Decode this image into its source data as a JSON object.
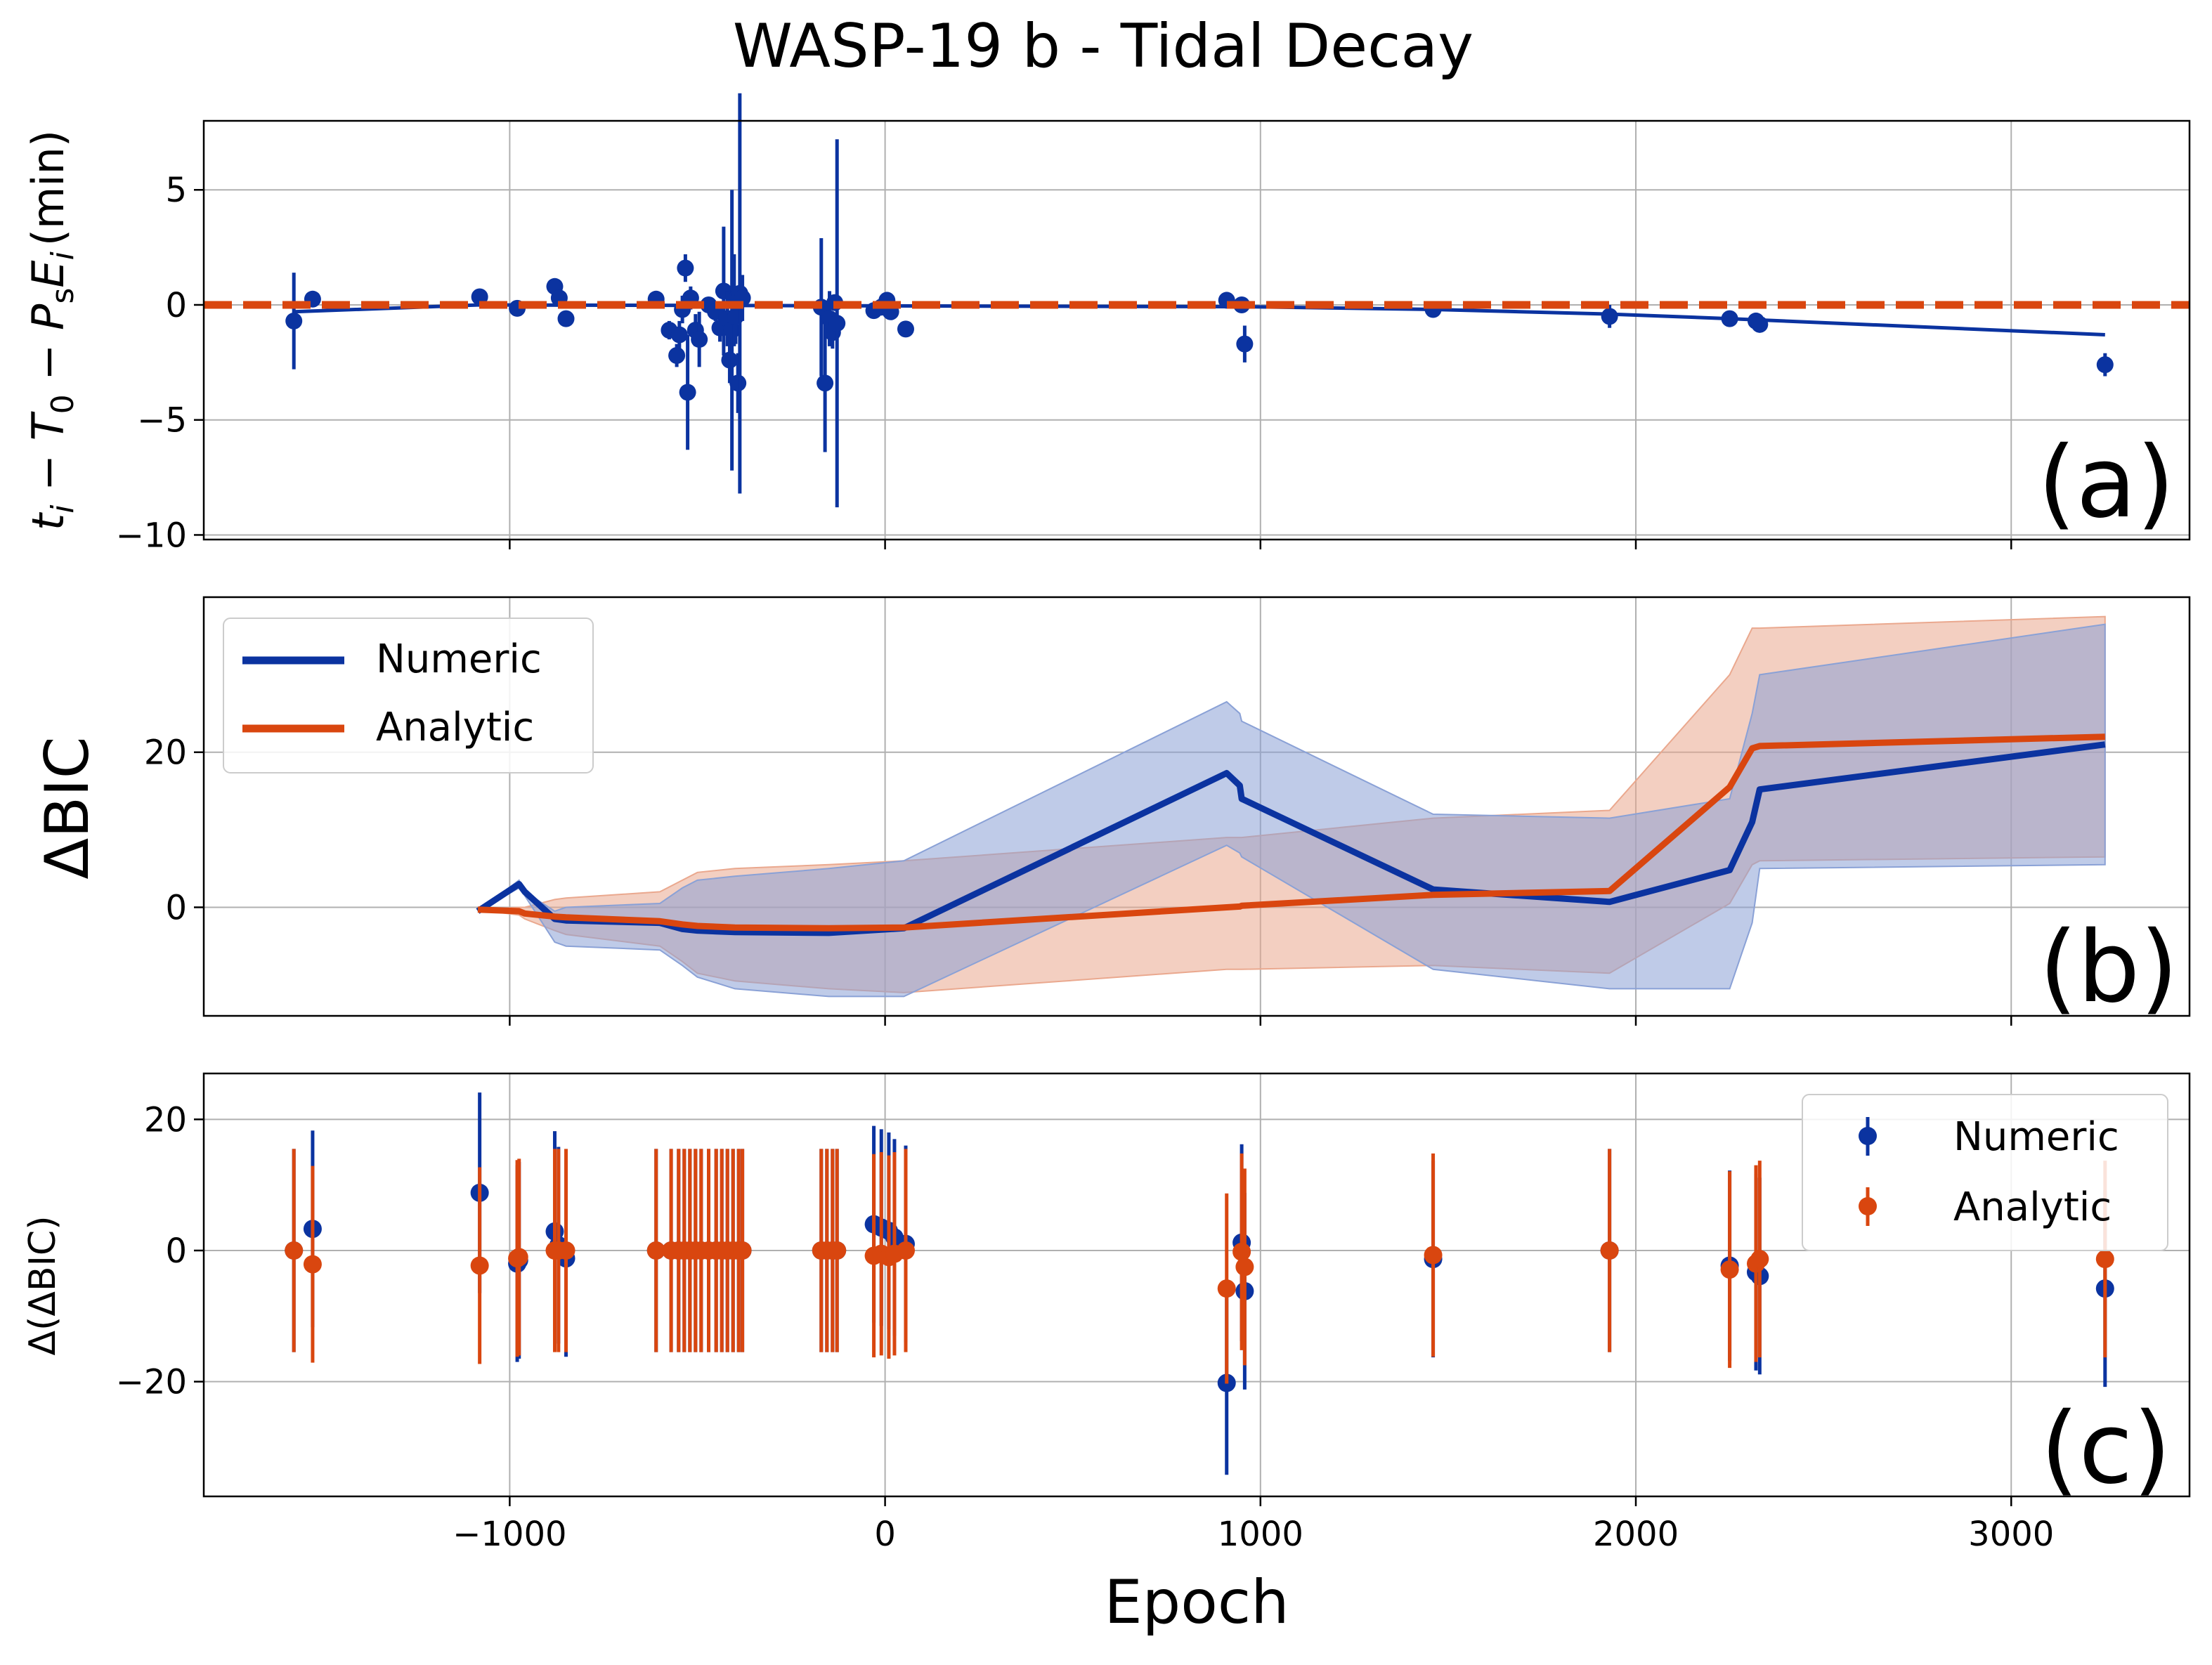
{
  "title": "WASP-19 b - Tidal Decay",
  "xlabel": "Epoch",
  "xlim": [
    -1815,
    3475
  ],
  "xticks": [
    -1000,
    0,
    1000,
    2000,
    3000
  ],
  "xtick_labels": [
    "−1000",
    "0",
    "1000",
    "2000",
    "3000"
  ],
  "colors": {
    "numeric": "#0b33a0",
    "analytic": "#d9460f",
    "numeric_fill": "#8aa1d6",
    "analytic_fill": "#eaa88e"
  },
  "chart_data": [
    {
      "type": "scatter",
      "panel_label": "(a)",
      "ylabel": "t_i − T_0 − P_sE_i (min)",
      "ylabel_parts": {
        "t": "t",
        "i": "i",
        "m1": " − ",
        "T": "T",
        "zero": "0",
        "m2": " − ",
        "P": "P",
        "s": "s",
        "E": "E",
        "i2": "i",
        "unit": "(min)"
      },
      "ylim": [
        -10.2,
        8.0
      ],
      "yticks": [
        -10,
        -5,
        0,
        5
      ],
      "ytick_labels": [
        "−10",
        "−5",
        "0",
        "5"
      ],
      "analytic_line": {
        "x": [
          -1815,
          3475
        ],
        "y": [
          0,
          0
        ]
      },
      "numeric_line": {
        "x": [
          -1575,
          -1080,
          960,
          1460,
          1930,
          2250,
          3250
        ],
        "y": [
          -0.3,
          0.0,
          -0.08,
          -0.2,
          -0.4,
          -0.6,
          -1.3
        ]
      },
      "points": [
        {
          "x": -1575,
          "y": -0.7,
          "err": 2.1
        },
        {
          "x": -1525,
          "y": 0.25,
          "err": 0.3
        },
        {
          "x": -1080,
          "y": 0.35,
          "err": 0.3
        },
        {
          "x": -980,
          "y": -0.15,
          "err": 0.3
        },
        {
          "x": -880,
          "y": 0.8,
          "err": 0.3
        },
        {
          "x": -868,
          "y": 0.3,
          "err": 0.3
        },
        {
          "x": -850,
          "y": -0.6,
          "err": 0.3
        },
        {
          "x": -610,
          "y": 0.25,
          "err": 0.3
        },
        {
          "x": -575,
          "y": -1.1,
          "err": 0.4
        },
        {
          "x": -555,
          "y": -2.2,
          "err": 0.5
        },
        {
          "x": -548,
          "y": -1.3,
          "err": 0.6
        },
        {
          "x": -540,
          "y": -0.2,
          "err": 0.6
        },
        {
          "x": -532,
          "y": 1.6,
          "err": 0.6
        },
        {
          "x": -526,
          "y": -3.8,
          "err": 2.5
        },
        {
          "x": -518,
          "y": 0.3,
          "err": 0.5
        },
        {
          "x": -505,
          "y": -1.1,
          "err": 0.7
        },
        {
          "x": -495,
          "y": -1.5,
          "err": 1.2
        },
        {
          "x": -470,
          "y": 0.0,
          "err": 0.3
        },
        {
          "x": -452,
          "y": -0.3,
          "err": 0.4
        },
        {
          "x": -440,
          "y": -1.0,
          "err": 0.6
        },
        {
          "x": -430,
          "y": 0.6,
          "err": 2.8
        },
        {
          "x": -420,
          "y": -0.6,
          "err": 1.2
        },
        {
          "x": -414,
          "y": -2.4,
          "err": 1.0
        },
        {
          "x": -408,
          "y": -1.1,
          "err": 6.1
        },
        {
          "x": -402,
          "y": 0.2,
          "err": 2.0
        },
        {
          "x": -398,
          "y": -0.5,
          "err": 1.2
        },
        {
          "x": -392,
          "y": -3.4,
          "err": 1.3
        },
        {
          "x": -387,
          "y": 0.5,
          "err": 8.7
        },
        {
          "x": -380,
          "y": 0.3,
          "err": 1.0
        },
        {
          "x": -170,
          "y": -0.1,
          "err": 3.0
        },
        {
          "x": -160,
          "y": -3.4,
          "err": 3.0
        },
        {
          "x": -148,
          "y": -0.6,
          "err": 1.2
        },
        {
          "x": -140,
          "y": -1.2,
          "err": 0.7
        },
        {
          "x": -134,
          "y": 0.1,
          "err": 0.3
        },
        {
          "x": -128,
          "y": -0.8,
          "err": 8.0
        },
        {
          "x": -30,
          "y": -0.25,
          "err": 0.3
        },
        {
          "x": -10,
          "y": -0.1,
          "err": 0.3
        },
        {
          "x": 5,
          "y": 0.2,
          "err": 0.3
        },
        {
          "x": 15,
          "y": -0.3,
          "err": 0.3
        },
        {
          "x": 55,
          "y": -1.05,
          "err": 0.3
        },
        {
          "x": 910,
          "y": 0.2,
          "err": 0.3
        },
        {
          "x": 950,
          "y": 0.0,
          "err": 0.3
        },
        {
          "x": 958,
          "y": -1.7,
          "err": 0.8
        },
        {
          "x": 1460,
          "y": -0.2,
          "err": 0.3
        },
        {
          "x": 1930,
          "y": -0.5,
          "err": 0.5
        },
        {
          "x": 2250,
          "y": -0.6,
          "err": 0.3
        },
        {
          "x": 2320,
          "y": -0.7,
          "err": 0.3
        },
        {
          "x": 2330,
          "y": -0.85,
          "err": 0.3
        },
        {
          "x": 3250,
          "y": -2.6,
          "err": 0.5
        }
      ]
    },
    {
      "type": "line",
      "panel_label": "(b)",
      "ylabel": "ΔBIC",
      "ylim": [
        -14,
        40
      ],
      "yticks": [
        0,
        20
      ],
      "ytick_labels": [
        "0",
        "20"
      ],
      "legend": [
        "Numeric",
        "Analytic"
      ],
      "legend_loc": "upper left",
      "series": [
        {
          "name": "Numeric",
          "x": [
            -1085,
            -975,
            -960,
            -880,
            -850,
            -600,
            -540,
            -500,
            -400,
            -150,
            50,
            910,
            945,
            950,
            1460,
            1930,
            2250,
            2310,
            2330,
            3250
          ],
          "y": [
            -0.5,
            3.0,
            2.0,
            -1.5,
            -1.7,
            -2.0,
            -2.8,
            -3.0,
            -3.2,
            -3.3,
            -2.7,
            17.3,
            15.7,
            14.0,
            2.3,
            0.7,
            4.8,
            11.0,
            15.2,
            21.0
          ],
          "band_upper": [
            -0.5,
            3.5,
            2.0,
            -0.5,
            0.0,
            0.5,
            2.5,
            3.5,
            4.0,
            5.0,
            6.0,
            26.5,
            25.0,
            24.0,
            12.0,
            11.5,
            14.0,
            25.0,
            30.0,
            36.5
          ],
          "band_lower": [
            -0.5,
            2.5,
            1.5,
            -4.5,
            -5.0,
            -5.5,
            -7.5,
            -9.0,
            -10.5,
            -11.5,
            -11.5,
            8.0,
            7.0,
            6.5,
            -8.0,
            -10.5,
            -10.5,
            -2.0,
            5.0,
            5.5
          ]
        },
        {
          "name": "Analytic",
          "x": [
            -1085,
            -975,
            -960,
            -880,
            -850,
            -600,
            -540,
            -500,
            -400,
            -150,
            50,
            910,
            945,
            950,
            1460,
            1930,
            2250,
            2310,
            2330,
            3250
          ],
          "y": [
            -0.3,
            -0.5,
            -0.8,
            -1.2,
            -1.3,
            -1.8,
            -2.2,
            -2.4,
            -2.6,
            -2.7,
            -2.6,
            0.0,
            0.1,
            0.2,
            1.6,
            2.1,
            15.5,
            20.5,
            20.8,
            22.0
          ],
          "band_upper": [
            -0.3,
            0.0,
            0.0,
            1.0,
            1.2,
            2.0,
            3.5,
            4.5,
            5.0,
            5.5,
            6.0,
            9.0,
            9.0,
            9.0,
            11.5,
            12.5,
            30.0,
            36.0,
            36.0,
            37.5
          ],
          "band_lower": [
            -0.3,
            -1.0,
            -1.5,
            -3.0,
            -3.5,
            -5.0,
            -7.0,
            -8.5,
            -9.5,
            -10.5,
            -11.0,
            -8.0,
            -8.0,
            -8.0,
            -7.5,
            -8.5,
            0.5,
            5.5,
            6.0,
            6.5
          ]
        }
      ]
    },
    {
      "type": "scatter",
      "panel_label": "(c)",
      "ylabel": "Δ(ΔBIC)",
      "ylim": [
        -37.5,
        27
      ],
      "yticks": [
        -20,
        0,
        20
      ],
      "ytick_labels": [
        "−20",
        "0",
        "20"
      ],
      "legend": [
        "Numeric",
        "Analytic"
      ],
      "legend_loc": "upper right",
      "series": [
        {
          "name": "Numeric",
          "points": [
            {
              "x": -1575,
              "y": 0.0,
              "err": 15.5
            },
            {
              "x": -1525,
              "y": 3.3,
              "err": 15.0
            },
            {
              "x": -1080,
              "y": 8.8,
              "err": 15.3
            },
            {
              "x": -980,
              "y": -2.0,
              "err": 15.0
            },
            {
              "x": -975,
              "y": -1.5,
              "err": 15.0
            },
            {
              "x": -880,
              "y": 2.9,
              "err": 15.3
            },
            {
              "x": -870,
              "y": 0.8,
              "err": 15.0
            },
            {
              "x": -850,
              "y": -1.2,
              "err": 15.0
            },
            {
              "x": -610,
              "y": 0.0,
              "err": 15.5
            },
            {
              "x": -570,
              "y": 0.0,
              "err": 15.5
            },
            {
              "x": -550,
              "y": 0.0,
              "err": 15.5
            },
            {
              "x": -535,
              "y": 0.0,
              "err": 15.5
            },
            {
              "x": -520,
              "y": 0.0,
              "err": 15.5
            },
            {
              "x": -505,
              "y": 0.0,
              "err": 15.5
            },
            {
              "x": -490,
              "y": 0.0,
              "err": 15.5
            },
            {
              "x": -470,
              "y": 0.0,
              "err": 15.5
            },
            {
              "x": -450,
              "y": 0.0,
              "err": 15.5
            },
            {
              "x": -435,
              "y": 0.0,
              "err": 15.5
            },
            {
              "x": -420,
              "y": 0.0,
              "err": 15.5
            },
            {
              "x": -405,
              "y": 0.0,
              "err": 15.5
            },
            {
              "x": -390,
              "y": 0.0,
              "err": 15.5
            },
            {
              "x": -380,
              "y": 0.0,
              "err": 15.5
            },
            {
              "x": -170,
              "y": 0.0,
              "err": 15.5
            },
            {
              "x": -155,
              "y": 0.0,
              "err": 15.5
            },
            {
              "x": -140,
              "y": 0.0,
              "err": 15.5
            },
            {
              "x": -128,
              "y": 0.0,
              "err": 15.5
            },
            {
              "x": -30,
              "y": 4.0,
              "err": 15.0
            },
            {
              "x": -10,
              "y": 3.5,
              "err": 15.0
            },
            {
              "x": 10,
              "y": 3.0,
              "err": 15.0
            },
            {
              "x": 25,
              "y": 2.0,
              "err": 15.0
            },
            {
              "x": 55,
              "y": 1.0,
              "err": 15.0
            },
            {
              "x": 910,
              "y": -20.2,
              "err": 14.0
            },
            {
              "x": 950,
              "y": 1.2,
              "err": 15.0
            },
            {
              "x": 958,
              "y": -6.2,
              "err": 15.0
            },
            {
              "x": 1460,
              "y": -1.3,
              "err": 15.0
            },
            {
              "x": 1930,
              "y": 0.0,
              "err": 15.5
            },
            {
              "x": 2250,
              "y": -2.3,
              "err": 14.5
            },
            {
              "x": 2320,
              "y": -3.3,
              "err": 15.0
            },
            {
              "x": 2330,
              "y": -3.9,
              "err": 15.0
            },
            {
              "x": 3250,
              "y": -5.8,
              "err": 15.0
            }
          ]
        },
        {
          "name": "Analytic",
          "points": [
            {
              "x": -1575,
              "y": 0.0,
              "err": 15.5
            },
            {
              "x": -1525,
              "y": -2.1,
              "err": 15.0
            },
            {
              "x": -1080,
              "y": -2.3,
              "err": 15.0
            },
            {
              "x": -980,
              "y": -1.2,
              "err": 15.0
            },
            {
              "x": -975,
              "y": -1.0,
              "err": 15.0
            },
            {
              "x": -880,
              "y": 0.0,
              "err": 15.5
            },
            {
              "x": -870,
              "y": 0.0,
              "err": 15.5
            },
            {
              "x": -850,
              "y": 0.0,
              "err": 15.5
            },
            {
              "x": -610,
              "y": 0.0,
              "err": 15.5
            },
            {
              "x": -570,
              "y": 0.0,
              "err": 15.5
            },
            {
              "x": -550,
              "y": 0.0,
              "err": 15.5
            },
            {
              "x": -535,
              "y": 0.0,
              "err": 15.5
            },
            {
              "x": -520,
              "y": 0.0,
              "err": 15.5
            },
            {
              "x": -505,
              "y": 0.0,
              "err": 15.5
            },
            {
              "x": -490,
              "y": 0.0,
              "err": 15.5
            },
            {
              "x": -470,
              "y": 0.0,
              "err": 15.5
            },
            {
              "x": -450,
              "y": 0.0,
              "err": 15.5
            },
            {
              "x": -435,
              "y": 0.0,
              "err": 15.5
            },
            {
              "x": -420,
              "y": 0.0,
              "err": 15.5
            },
            {
              "x": -405,
              "y": 0.0,
              "err": 15.5
            },
            {
              "x": -390,
              "y": 0.0,
              "err": 15.5
            },
            {
              "x": -380,
              "y": 0.0,
              "err": 15.5
            },
            {
              "x": -170,
              "y": 0.0,
              "err": 15.5
            },
            {
              "x": -155,
              "y": 0.0,
              "err": 15.5
            },
            {
              "x": -140,
              "y": 0.0,
              "err": 15.5
            },
            {
              "x": -128,
              "y": 0.0,
              "err": 15.5
            },
            {
              "x": -30,
              "y": -0.8,
              "err": 15.5
            },
            {
              "x": -10,
              "y": -0.5,
              "err": 15.5
            },
            {
              "x": 10,
              "y": -1.0,
              "err": 15.5
            },
            {
              "x": 25,
              "y": -0.5,
              "err": 15.5
            },
            {
              "x": 55,
              "y": 0.0,
              "err": 15.5
            },
            {
              "x": 910,
              "y": -5.8,
              "err": 14.5
            },
            {
              "x": 950,
              "y": -0.2,
              "err": 15.0
            },
            {
              "x": 958,
              "y": -2.5,
              "err": 15.0
            },
            {
              "x": 1460,
              "y": -0.7,
              "err": 15.5
            },
            {
              "x": 1930,
              "y": 0.0,
              "err": 15.5
            },
            {
              "x": 2250,
              "y": -2.9,
              "err": 15.0
            },
            {
              "x": 2320,
              "y": -2.0,
              "err": 15.0
            },
            {
              "x": 2330,
              "y": -1.3,
              "err": 15.0
            },
            {
              "x": 3250,
              "y": -1.3,
              "err": 15.0
            }
          ]
        }
      ]
    }
  ]
}
